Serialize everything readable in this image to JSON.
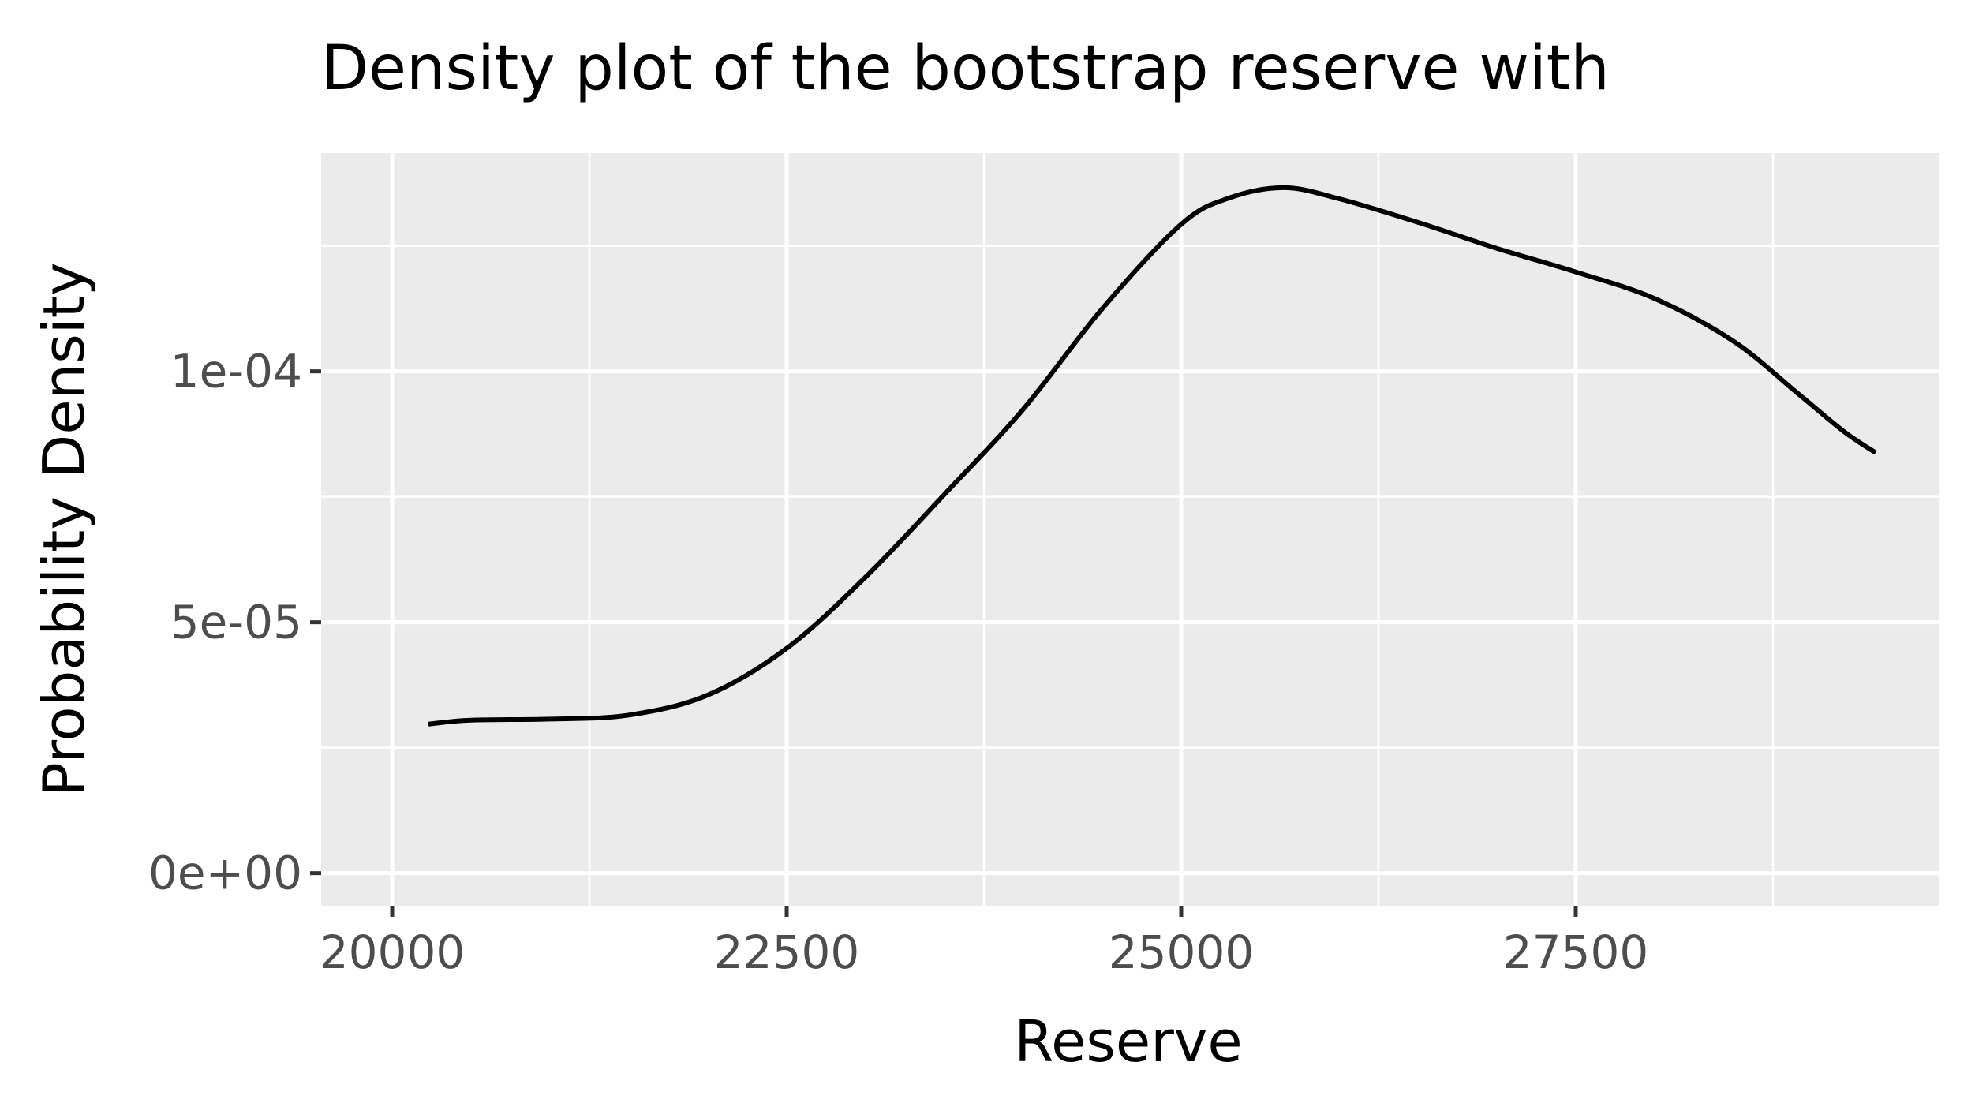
{
  "chart_data": {
    "type": "line",
    "title": "Density plot of the bootstrap reserve with",
    "xlabel": "Reserve",
    "ylabel": "Probability Density",
    "xlim": [
      19550,
      29800
    ],
    "ylim": [
      -6.5e-06,
      0.0001435
    ],
    "x_ticks": [
      20000,
      22500,
      25000,
      27500
    ],
    "x_tick_labels": [
      "20000",
      "22500",
      "25000",
      "27500"
    ],
    "x_minor_ticks": [
      21250,
      23750,
      26250,
      28750
    ],
    "y_ticks": [
      0,
      5e-05,
      0.0001
    ],
    "y_tick_labels": [
      "0e+00",
      "5e-05",
      "1e-04"
    ],
    "y_minor_ticks": [
      2.5e-05,
      7.5e-05,
      0.000125
    ],
    "grid": true,
    "panel_background": "#ebebeb",
    "grid_color": "#ffffff",
    "line_color": "#000000",
    "series": [
      {
        "x": [
          20230,
          20500,
          21000,
          21500,
          22000,
          22500,
          23000,
          23500,
          24000,
          24500,
          25000,
          25300,
          25650,
          26000,
          26500,
          27000,
          27500,
          28000,
          28500,
          28900,
          29200,
          29400
        ],
        "y": [
          2.97e-05,
          3.05e-05,
          3.07e-05,
          3.15e-05,
          3.55e-05,
          4.48e-05,
          5.9e-05,
          7.55e-05,
          9.25e-05,
          0.0001125,
          0.0001293,
          0.0001345,
          0.0001366,
          0.0001344,
          0.0001297,
          0.0001245,
          0.0001198,
          0.0001145,
          0.000106,
          9.58e-05,
          8.8e-05,
          8.38e-05
        ]
      }
    ]
  }
}
